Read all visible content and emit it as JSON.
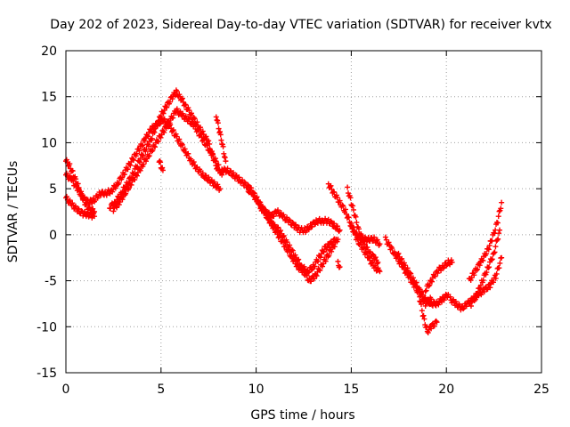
{
  "chart_data": {
    "type": "scatter",
    "title": "Day 202 of 2023, Sidereal Day-to-day VTEC variation (SDTVAR) for receiver kvtx",
    "xlabel": "GPS time / hours",
    "ylabel": "SDTVAR / TECUs",
    "xlim": [
      0,
      25
    ],
    "ylim": [
      -15,
      20
    ],
    "xticks": [
      0,
      5,
      10,
      15,
      20,
      25
    ],
    "yticks": [
      -15,
      -10,
      -5,
      0,
      5,
      10,
      15,
      20
    ],
    "xtick_labels": [
      "0",
      "5",
      "10",
      "15",
      "20",
      "25"
    ],
    "ytick_labels": [
      "-15",
      "-10",
      "-5",
      "0",
      "5",
      "10",
      "15",
      "20"
    ],
    "grid": true,
    "marker": "+",
    "color": "#ff0000",
    "series": [
      {
        "name": "trace-1",
        "x": [
          0.0,
          0.2,
          0.4,
          0.6,
          0.8,
          1.0,
          1.2,
          1.5
        ],
        "y": [
          8.0,
          7.5,
          6.5,
          5.5,
          4.5,
          3.5,
          2.8,
          2.5
        ]
      },
      {
        "name": "trace-2",
        "x": [
          0.0,
          0.3,
          0.6,
          0.9,
          1.2,
          1.5,
          1.8,
          2.1,
          2.4,
          2.7,
          3.0,
          3.3,
          3.6,
          3.9,
          4.2,
          4.5,
          4.8,
          5.1,
          5.4,
          5.7,
          6.0,
          6.3,
          6.6,
          6.9,
          7.2,
          7.5,
          7.8,
          8.1
        ],
        "y": [
          6.5,
          6.0,
          5.0,
          4.0,
          3.5,
          3.8,
          4.5,
          4.5,
          4.8,
          5.5,
          6.5,
          7.5,
          8.5,
          9.5,
          10.5,
          11.5,
          12.0,
          12.5,
          12.0,
          11.0,
          10.0,
          9.0,
          8.0,
          7.2,
          6.5,
          6.0,
          5.5,
          5.0
        ]
      },
      {
        "name": "trace-3",
        "x": [
          0.0,
          0.3,
          0.6,
          0.9,
          1.2,
          1.5
        ],
        "y": [
          4.0,
          3.3,
          2.7,
          2.3,
          2.2,
          2.0
        ]
      },
      {
        "name": "trace-4",
        "x": [
          2.3,
          2.6,
          2.9,
          3.2,
          3.5,
          3.8,
          4.1,
          4.4,
          4.7,
          5.0,
          5.3,
          5.6,
          5.8,
          6.0,
          6.3,
          6.6,
          6.9,
          7.2,
          7.5,
          7.8,
          8.0
        ],
        "y": [
          3.0,
          3.5,
          4.5,
          5.5,
          6.5,
          7.8,
          9.0,
          10.0,
          11.5,
          13.0,
          14.0,
          15.0,
          15.5,
          15.0,
          14.0,
          13.0,
          12.0,
          11.0,
          10.0,
          8.0,
          7.0
        ]
      },
      {
        "name": "trace-5",
        "x": [
          2.5,
          2.8,
          3.1,
          3.4,
          3.7,
          4.0,
          4.3,
          4.6,
          4.9,
          5.2,
          5.5,
          5.8,
          6.1,
          6.4,
          6.7,
          7.0,
          7.3,
          7.6,
          7.9,
          8.2
        ],
        "y": [
          2.8,
          3.5,
          4.5,
          5.5,
          6.5,
          7.5,
          8.5,
          9.5,
          10.5,
          11.5,
          12.5,
          13.5,
          13.0,
          12.5,
          12.0,
          11.0,
          10.0,
          9.0,
          8.0,
          6.5
        ]
      },
      {
        "name": "trace-6",
        "x": [
          4.9,
          5.0,
          5.1
        ],
        "y": [
          8.0,
          7.5,
          7.0
        ]
      },
      {
        "name": "trace-7",
        "x": [
          7.9,
          8.0,
          8.1,
          8.2,
          8.3,
          8.4
        ],
        "y": [
          13.0,
          12.0,
          11.0,
          10.0,
          9.0,
          8.0
        ]
      },
      {
        "name": "trace-8",
        "x": [
          8.2,
          8.5,
          8.8,
          9.1,
          9.4,
          9.7,
          10.0,
          10.3,
          10.6,
          10.9,
          11.2,
          11.5,
          11.8,
          12.1,
          12.4,
          12.7,
          13.0,
          13.3,
          13.6,
          13.9,
          14.2
        ],
        "y": [
          7.0,
          7.0,
          6.5,
          6.0,
          5.5,
          5.0,
          4.0,
          3.0,
          2.0,
          1.0,
          0.5,
          -0.5,
          -1.5,
          -2.5,
          -3.5,
          -4.0,
          -3.5,
          -2.5,
          -1.5,
          -1.0,
          -0.5
        ]
      },
      {
        "name": "trace-9",
        "x": [
          9.5,
          9.8,
          10.1,
          10.4,
          10.7,
          11.0,
          11.3,
          11.6,
          11.9,
          12.2,
          12.5,
          12.8,
          13.1,
          13.4,
          13.7,
          14.0,
          14.3
        ],
        "y": [
          5.0,
          4.5,
          3.5,
          2.5,
          1.5,
          0.5,
          -0.5,
          -1.5,
          -2.5,
          -3.5,
          -4.0,
          -5.0,
          -4.5,
          -3.5,
          -2.5,
          -1.5,
          -0.5
        ]
      },
      {
        "name": "trace-10",
        "x": [
          10.2,
          10.5,
          10.8,
          11.1,
          11.4,
          11.7,
          12.0,
          12.3,
          12.6,
          12.9,
          13.2,
          13.5,
          13.8,
          14.1,
          14.4
        ],
        "y": [
          3.0,
          2.5,
          2.0,
          2.5,
          2.0,
          1.5,
          1.0,
          0.5,
          0.5,
          1.0,
          1.5,
          1.5,
          1.5,
          1.0,
          0.5
        ]
      },
      {
        "name": "trace-11",
        "x": [
          13.8,
          14.1,
          14.4,
          14.7,
          15.0,
          15.3,
          15.6,
          15.9,
          16.2,
          16.5
        ],
        "y": [
          5.5,
          4.5,
          3.5,
          2.5,
          1.0,
          -0.5,
          -1.5,
          -2.5,
          -3.5,
          -4.0
        ]
      },
      {
        "name": "trace-12",
        "x": [
          14.8,
          15.0,
          15.2,
          15.4,
          15.6,
          15.8,
          16.0,
          16.2,
          16.4
        ],
        "y": [
          5.0,
          3.5,
          2.0,
          0.5,
          -0.5,
          -1.5,
          -2.0,
          -2.5,
          -3.0
        ]
      },
      {
        "name": "trace-13",
        "x": [
          15.0,
          15.3,
          15.6,
          15.9,
          16.2,
          16.5
        ],
        "y": [
          1.0,
          0.0,
          -0.5,
          -0.5,
          -0.5,
          -1.0
        ]
      },
      {
        "name": "trace-14",
        "x": [
          14.3,
          14.4
        ],
        "y": [
          -3.0,
          -3.5
        ]
      },
      {
        "name": "trace-15",
        "x": [
          16.8,
          17.1,
          17.4,
          17.7,
          18.0,
          18.3,
          18.6,
          18.9,
          19.2
        ],
        "y": [
          -0.5,
          -1.5,
          -2.5,
          -3.5,
          -4.5,
          -5.5,
          -6.5,
          -7.5,
          -7.0
        ]
      },
      {
        "name": "trace-16",
        "x": [
          17.4,
          17.7,
          18.0,
          18.3,
          18.6,
          18.9,
          19.2,
          19.5,
          19.8,
          20.1
        ],
        "y": [
          -2.0,
          -3.0,
          -4.0,
          -5.0,
          -6.0,
          -7.0,
          -7.5,
          -7.5,
          -7.0,
          -6.5
        ]
      },
      {
        "name": "trace-17",
        "x": [
          18.6,
          18.8,
          19.0,
          19.2,
          19.5
        ],
        "y": [
          -7.0,
          -9.0,
          -10.5,
          -10.0,
          -9.5
        ]
      },
      {
        "name": "trace-18",
        "x": [
          18.9,
          19.2,
          19.5,
          19.8,
          20.1,
          20.3
        ],
        "y": [
          -6.0,
          -5.0,
          -4.0,
          -3.5,
          -3.0,
          -3.0
        ]
      },
      {
        "name": "trace-19",
        "x": [
          20.2,
          20.5,
          20.8,
          21.1,
          21.4,
          21.7,
          22.0,
          22.3,
          22.6,
          22.9
        ],
        "y": [
          -7.0,
          -7.5,
          -8.0,
          -7.5,
          -7.0,
          -6.5,
          -6.0,
          -5.5,
          -4.5,
          -2.5
        ]
      },
      {
        "name": "trace-20",
        "x": [
          21.2,
          21.5,
          21.8,
          22.1,
          22.4,
          22.7,
          22.9
        ],
        "y": [
          -5.0,
          -4.0,
          -3.0,
          -2.0,
          -0.5,
          1.5,
          3.5
        ]
      },
      {
        "name": "trace-21",
        "x": [
          21.3,
          21.6,
          21.9,
          22.2,
          22.5,
          22.8
        ],
        "y": [
          -7.5,
          -6.5,
          -5.0,
          -3.5,
          -2.0,
          0.5
        ]
      }
    ]
  }
}
